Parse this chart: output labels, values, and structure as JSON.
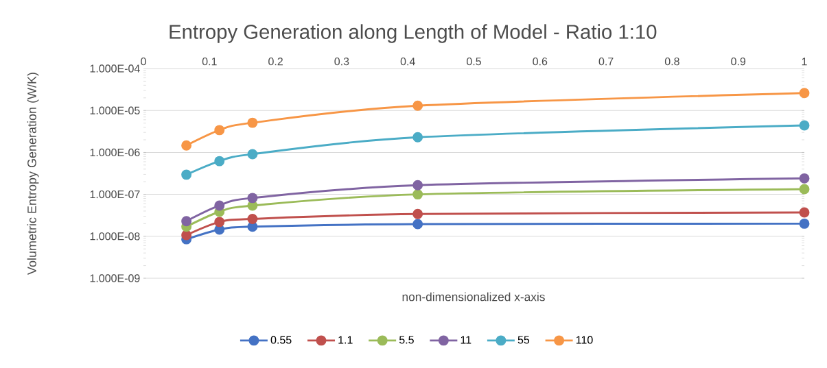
{
  "chart_data": {
    "type": "line",
    "title": "Entropy Generation along Length of Model - Ratio 1:10",
    "xlabel": "non-dimensionalized x-axis",
    "ylabel": "Volumetric Entropy Generation (W/K)",
    "log": "y",
    "grid": "y",
    "legend": "bottom",
    "marker": "circle",
    "line_style": "solid",
    "xlim": [
      0,
      1
    ],
    "xticks": [
      0,
      0.1,
      0.2,
      0.3,
      0.4,
      0.5,
      0.6,
      0.7,
      0.8,
      0.9,
      1
    ],
    "ylim": [
      1e-09,
      0.0001
    ],
    "yticks": [
      {
        "value": 1e-09,
        "label": "1.000E-09"
      },
      {
        "value": 1e-08,
        "label": "1.000E-08"
      },
      {
        "value": 1e-07,
        "label": "1.000E-07"
      },
      {
        "value": 1e-06,
        "label": "1.000E-06"
      },
      {
        "value": 1e-05,
        "label": "1.000E-05"
      },
      {
        "value": 0.0001,
        "label": "1.000E-04"
      }
    ],
    "x": [
      0.065,
      0.115,
      0.165,
      0.415,
      1
    ],
    "series": [
      {
        "name": "0.55",
        "color": "#4472c4",
        "values": [
          8.5e-09,
          1.45e-08,
          1.7e-08,
          1.95e-08,
          2e-08
        ]
      },
      {
        "name": "1.1",
        "color": "#c0504d",
        "values": [
          1.07e-08,
          2.2e-08,
          2.6e-08,
          3.4e-08,
          3.7e-08
        ]
      },
      {
        "name": "5.5",
        "color": "#9bbb59",
        "values": [
          1.7e-08,
          3.85e-08,
          5.4e-08,
          1e-07,
          1.33e-07
        ]
      },
      {
        "name": "11",
        "color": "#8064a2",
        "values": [
          2.3e-08,
          5.4e-08,
          8.2e-08,
          1.65e-07,
          2.4e-07
        ]
      },
      {
        "name": "55",
        "color": "#4bacc6",
        "values": [
          2.95e-07,
          6.2e-07,
          9.1e-07,
          2.3e-06,
          4.4e-06
        ]
      },
      {
        "name": "110",
        "color": "#f79646",
        "values": [
          1.47e-06,
          3.4e-06,
          5.1e-06,
          1.3e-05,
          2.6e-05
        ]
      }
    ]
  }
}
